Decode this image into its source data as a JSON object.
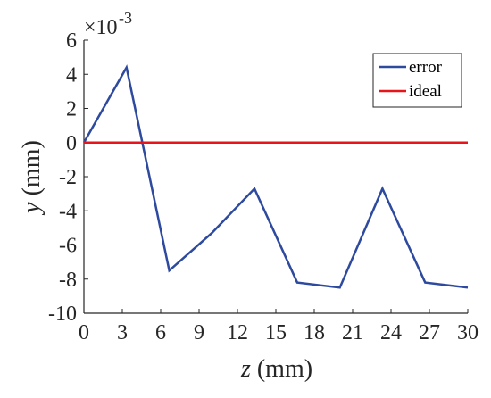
{
  "chart_data": {
    "type": "line",
    "x": [
      0,
      3.33,
      6.67,
      10,
      13.33,
      16.67,
      20,
      23.33,
      26.67,
      30
    ],
    "series": [
      {
        "name": "error",
        "color": "#2e4a9e",
        "values": [
          0,
          0.0044,
          -0.0075,
          -0.0053,
          -0.0027,
          -0.0082,
          -0.0085,
          -0.0027,
          -0.0082,
          -0.0085
        ]
      },
      {
        "name": "ideal",
        "color": "#e8141b",
        "values": [
          0,
          0,
          0,
          0,
          0,
          0,
          0,
          0,
          0,
          0
        ]
      }
    ],
    "xlim": [
      0,
      30
    ],
    "ylim": [
      -0.01,
      0.006
    ],
    "xticks": [
      0,
      3,
      6,
      9,
      12,
      15,
      18,
      21,
      24,
      27,
      30
    ],
    "xtick_labels": [
      "0",
      "3",
      "6",
      "9",
      "12",
      "15",
      "18",
      "21",
      "24",
      "27",
      "30"
    ],
    "yticks": [
      -10,
      -8,
      -6,
      -4,
      -2,
      0,
      2,
      4,
      6
    ],
    "ytick_labels": [
      "-10",
      "-8",
      "-6",
      "-4",
      "-2",
      "0",
      "2",
      "4",
      "6"
    ],
    "y_exponent_base": "×10",
    "y_exponent_power": "-3",
    "xlabel_symbol": "z",
    "xlabel_unit": " (mm)",
    "ylabel_symbol": "y",
    "ylabel_unit": " (mm)",
    "legend_position": "top-right",
    "grid": false
  }
}
